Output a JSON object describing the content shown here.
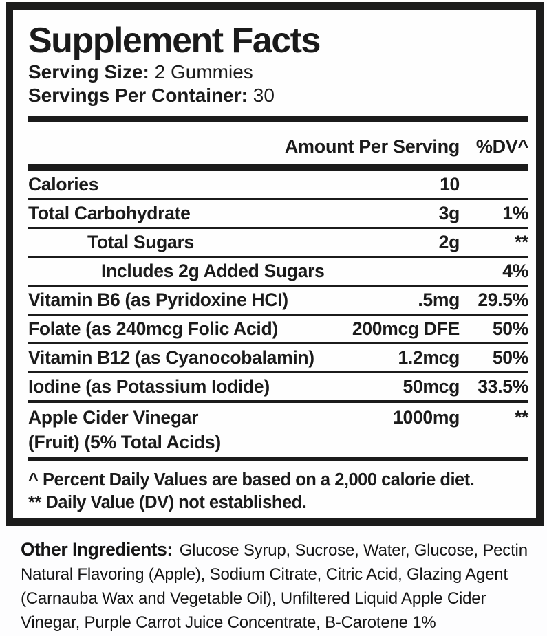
{
  "colors": {
    "ink": "#1b1b1b",
    "paper": "#fefefe"
  },
  "panel": {
    "title": "Supplement Facts",
    "serving_size": {
      "label": "Serving Size:",
      "value": "2 Gummies"
    },
    "servings_per_container": {
      "label": "Servings Per Container:",
      "value": "30"
    },
    "columns": {
      "amount": "Amount Per Serving",
      "dv": "%DV^"
    },
    "rows": [
      {
        "name": "Calories",
        "amount": "10",
        "dv": ""
      },
      {
        "name": "Total Carbohydrate",
        "amount": "3g",
        "dv": "1%"
      },
      {
        "name": "Total Sugars",
        "amount": "2g",
        "dv": "**"
      },
      {
        "name": "Includes 2g Added Sugars",
        "amount": "",
        "dv": "4%"
      },
      {
        "name": "Vitamin B6 (as Pyridoxine HCI)",
        "amount": ".5mg",
        "dv": "29.5%"
      },
      {
        "name": "Folate (as 240mcg Folic Acid)",
        "amount": "200mcg DFE",
        "dv": "50%"
      },
      {
        "name": "Vitamin B12 (as Cyanocobalamin)",
        "amount": "1.2mcg",
        "dv": "50%"
      },
      {
        "name": "Iodine (as Potassium Iodide)",
        "amount": "50mcg",
        "dv": "33.5%"
      },
      {
        "name": "Apple Cider Vinegar",
        "name_line2": "(Fruit) (5% Total Acids)",
        "amount": "1000mg",
        "dv": "**"
      }
    ],
    "footnotes": [
      "^ Percent Daily Values are based on a 2,000 calorie diet.",
      "** Daily Value (DV) not established."
    ]
  },
  "other_ingredients": {
    "label": "Other Ingredients:",
    "lines": [
      "Glucose Syrup, Sucrose, Water, Glucose, Pectin",
      "Natural Flavoring (Apple), Sodium Citrate, Citric Acid, Glazing Agent",
      "(Carnauba Wax and Vegetable Oil), Unfiltered Liquid Apple Cider",
      "Vinegar, Purple Carrot Juice Concentrate, B-Carotene 1%"
    ]
  }
}
